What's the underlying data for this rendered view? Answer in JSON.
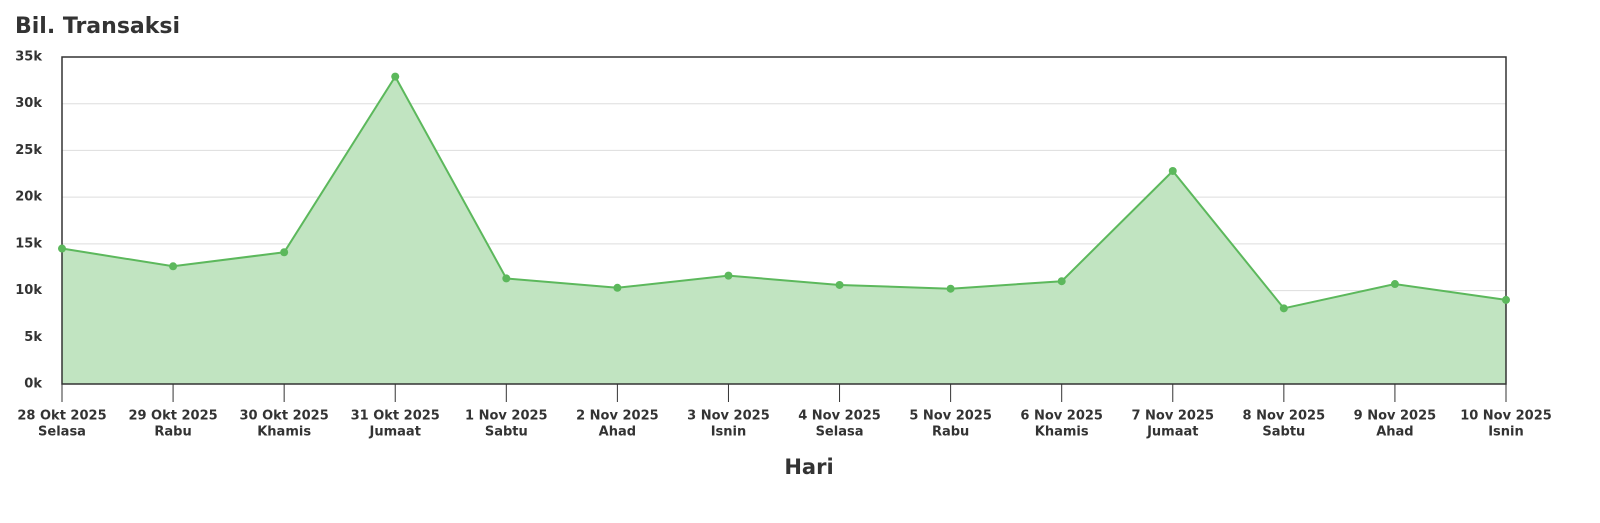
{
  "chart_data": {
    "type": "area",
    "title": "Bil. Transaksi",
    "x_label": "Hari",
    "categories": [
      [
        "28 Okt 2025",
        "Selasa"
      ],
      [
        "29 Okt 2025",
        "Rabu"
      ],
      [
        "30 Okt 2025",
        "Khamis"
      ],
      [
        "31 Okt 2025",
        "Jumaat"
      ],
      [
        "1 Nov 2025",
        "Sabtu"
      ],
      [
        "2 Nov 2025",
        "Ahad"
      ],
      [
        "3 Nov 2025",
        "Isnin"
      ],
      [
        "4 Nov 2025",
        "Selasa"
      ],
      [
        "5 Nov 2025",
        "Rabu"
      ],
      [
        "6 Nov 2025",
        "Khamis"
      ],
      [
        "7 Nov 2025",
        "Jumaat"
      ],
      [
        "8 Nov 2025",
        "Sabtu"
      ],
      [
        "9 Nov 2025",
        "Ahad"
      ],
      [
        "10 Nov 2025",
        "Isnin"
      ]
    ],
    "values": [
      14500,
      12600,
      14100,
      32900,
      11300,
      10300,
      11600,
      10600,
      10200,
      11000,
      22800,
      8100,
      10700,
      9000
    ],
    "color": "#5cb85c",
    "fill": "#c1e4c1",
    "ylim": [
      0,
      35000
    ],
    "yticks": [
      {
        "value": 0,
        "label": "0k"
      },
      {
        "value": 5000,
        "label": "5k"
      },
      {
        "value": 10000,
        "label": "10k"
      },
      {
        "value": 15000,
        "label": "15k"
      },
      {
        "value": 20000,
        "label": "20k"
      },
      {
        "value": 25000,
        "label": "25k"
      },
      {
        "value": 30000,
        "label": "30k"
      },
      {
        "value": 35000,
        "label": "35k"
      }
    ],
    "grid": true
  }
}
